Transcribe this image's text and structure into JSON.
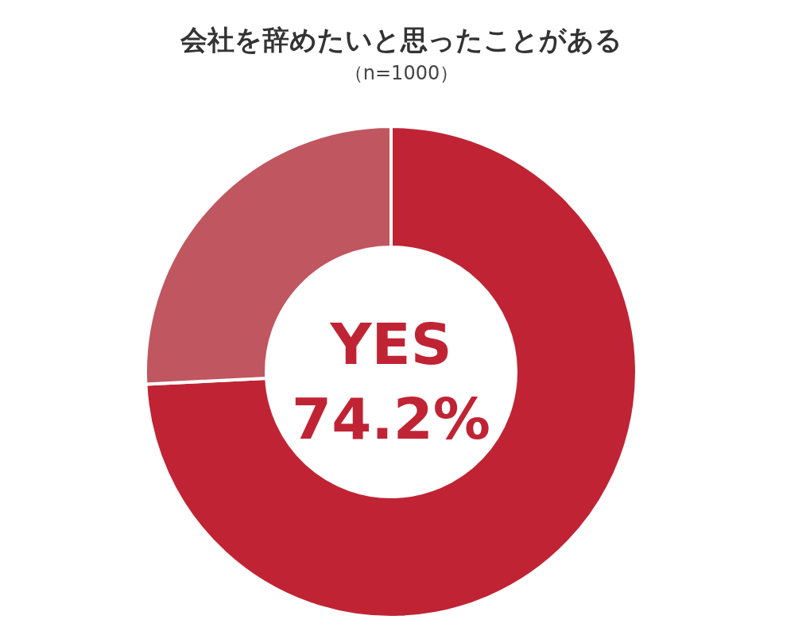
{
  "chart_data": {
    "type": "donut",
    "title": "会社を辞めたいと思ったことがある",
    "subtitle": "（n=1000）",
    "categories": [
      "YES",
      null
    ],
    "values": [
      74.2,
      25.8
    ],
    "colors": [
      "#c02434",
      "#c0565f"
    ],
    "value_labels": [
      "74.2%",
      null
    ]
  }
}
